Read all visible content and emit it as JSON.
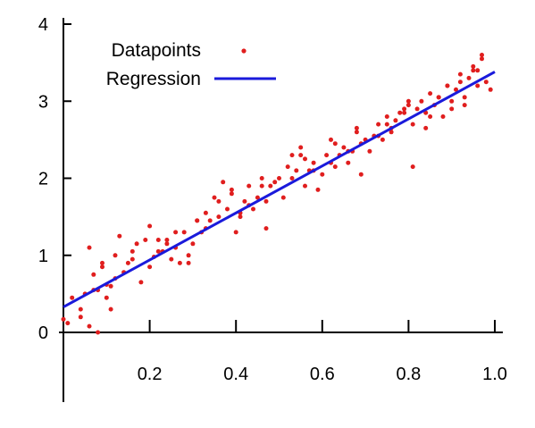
{
  "chart_data": {
    "type": "scatter",
    "title": "",
    "xlabel": "",
    "ylabel": "",
    "xlim": [
      0,
      1.0
    ],
    "ylim": [
      0,
      4
    ],
    "x_ticks": [
      0.2,
      0.4,
      0.6,
      0.8,
      1.0
    ],
    "x_tick_labels": [
      "0.2",
      "0.4",
      "0.6",
      "0.8",
      "1.0"
    ],
    "y_ticks": [
      0,
      1,
      2,
      3,
      4
    ],
    "y_tick_labels": [
      "0",
      "1",
      "2",
      "3",
      "4"
    ],
    "grid": false,
    "legend": {
      "placement": "top-left",
      "entries": [
        {
          "label": "Datapoints",
          "marker": "dot",
          "color": "#e01e1e"
        },
        {
          "label": "Regression",
          "marker": "line",
          "color": "#1a1adb"
        }
      ]
    },
    "series": [
      {
        "name": "Datapoints",
        "kind": "scatter",
        "color": "#e01e1e",
        "x": [
          0.0,
          0.01,
          0.02,
          0.04,
          0.05,
          0.06,
          0.06,
          0.07,
          0.08,
          0.08,
          0.09,
          0.1,
          0.1,
          0.11,
          0.12,
          0.13,
          0.14,
          0.15,
          0.16,
          0.18,
          0.19,
          0.2,
          0.2,
          0.21,
          0.22,
          0.23,
          0.24,
          0.25,
          0.26,
          0.27,
          0.28,
          0.29,
          0.3,
          0.31,
          0.32,
          0.33,
          0.34,
          0.35,
          0.36,
          0.37,
          0.38,
          0.39,
          0.4,
          0.41,
          0.42,
          0.43,
          0.44,
          0.45,
          0.46,
          0.47,
          0.48,
          0.5,
          0.51,
          0.52,
          0.53,
          0.54,
          0.55,
          0.56,
          0.57,
          0.58,
          0.59,
          0.6,
          0.61,
          0.62,
          0.63,
          0.64,
          0.65,
          0.66,
          0.67,
          0.68,
          0.69,
          0.7,
          0.71,
          0.72,
          0.73,
          0.74,
          0.75,
          0.76,
          0.77,
          0.78,
          0.79,
          0.8,
          0.81,
          0.82,
          0.83,
          0.84,
          0.85,
          0.86,
          0.87,
          0.88,
          0.89,
          0.9,
          0.91,
          0.92,
          0.93,
          0.94,
          0.95,
          0.96,
          0.97,
          0.98,
          0.99,
          0.04,
          0.07,
          0.09,
          0.12,
          0.17,
          0.22,
          0.26,
          0.29,
          0.31,
          0.36,
          0.39,
          0.43,
          0.47,
          0.49,
          0.53,
          0.56,
          0.58,
          0.62,
          0.66,
          0.69,
          0.73,
          0.76,
          0.79,
          0.81,
          0.84,
          0.87,
          0.9,
          0.92,
          0.95,
          0.97,
          0.11,
          0.16,
          0.24,
          0.33,
          0.41,
          0.46,
          0.55,
          0.63,
          0.68,
          0.75,
          0.8,
          0.85,
          0.89,
          0.93,
          0.96
        ],
        "y": [
          0.17,
          0.12,
          0.45,
          0.2,
          0.5,
          1.1,
          0.08,
          0.75,
          0.55,
          0.0,
          0.9,
          0.62,
          0.45,
          0.3,
          0.7,
          1.25,
          0.78,
          0.9,
          1.05,
          0.65,
          1.2,
          0.85,
          1.38,
          0.98,
          1.2,
          1.05,
          1.15,
          0.95,
          1.1,
          0.9,
          1.3,
          1.0,
          1.15,
          1.45,
          1.3,
          1.55,
          1.45,
          1.75,
          1.7,
          1.95,
          1.6,
          1.85,
          1.3,
          1.55,
          1.7,
          1.9,
          1.6,
          1.75,
          2.0,
          1.7,
          1.9,
          2.0,
          1.75,
          2.15,
          2.3,
          2.1,
          2.4,
          1.9,
          2.1,
          2.2,
          1.85,
          2.05,
          2.3,
          2.5,
          2.15,
          2.3,
          2.4,
          2.2,
          2.35,
          2.6,
          2.45,
          2.5,
          2.35,
          2.55,
          2.7,
          2.5,
          2.8,
          2.65,
          2.75,
          2.85,
          2.9,
          2.95,
          2.7,
          2.9,
          3.0,
          2.85,
          3.1,
          2.95,
          3.05,
          2.8,
          3.2,
          3.0,
          3.15,
          3.25,
          2.95,
          3.3,
          3.4,
          3.2,
          3.55,
          3.25,
          3.15,
          0.3,
          0.55,
          0.85,
          1.0,
          1.15,
          1.05,
          1.3,
          0.9,
          1.45,
          1.5,
          1.8,
          1.65,
          1.35,
          1.95,
          2.0,
          2.25,
          2.1,
          2.2,
          2.35,
          2.05,
          2.55,
          2.6,
          2.85,
          2.15,
          2.65,
          3.05,
          2.9,
          3.35,
          3.45,
          3.6,
          0.6,
          0.95,
          1.2,
          1.35,
          1.5,
          1.9,
          2.3,
          2.45,
          2.65,
          2.7,
          3.0,
          2.8,
          3.2,
          3.05,
          3.4
        ]
      },
      {
        "name": "Regression",
        "kind": "line",
        "color": "#1a1adb",
        "x": [
          0.0,
          1.0
        ],
        "y": [
          0.33,
          3.38
        ]
      }
    ]
  }
}
